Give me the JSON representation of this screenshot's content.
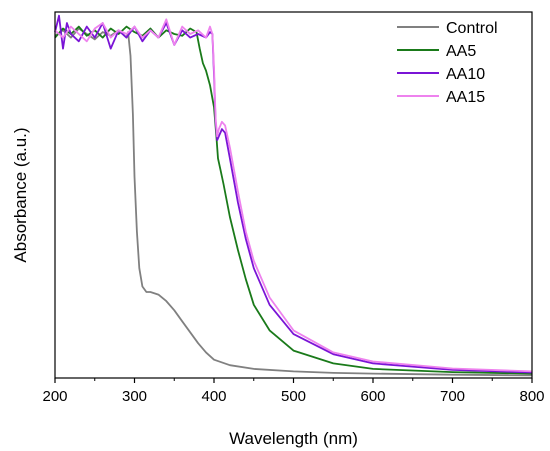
{
  "chart_data": {
    "type": "line",
    "title": "",
    "xlabel": "Wavelength (nm)",
    "ylabel": "Absorbance (a.u.)",
    "xlim": [
      200,
      800
    ],
    "ylim": [
      0,
      1.0
    ],
    "xticks": [
      200,
      300,
      400,
      500,
      600,
      700,
      800
    ],
    "yticks_shown": false,
    "grid": false,
    "legend_position": "top-right",
    "series": [
      {
        "name": "Control",
        "color": "#808080",
        "x": [
          200,
          210,
          220,
          230,
          240,
          250,
          260,
          270,
          280,
          290,
          292,
          295,
          298,
          300,
          303,
          306,
          310,
          315,
          320,
          330,
          340,
          350,
          360,
          370,
          380,
          390,
          400,
          420,
          450,
          500,
          550,
          600,
          700,
          800
        ],
        "y": [
          0.935,
          0.95,
          0.93,
          0.955,
          0.94,
          0.925,
          0.945,
          0.935,
          0.95,
          0.93,
          0.945,
          0.88,
          0.72,
          0.55,
          0.4,
          0.3,
          0.25,
          0.235,
          0.235,
          0.228,
          0.21,
          0.185,
          0.155,
          0.125,
          0.095,
          0.07,
          0.05,
          0.035,
          0.025,
          0.018,
          0.014,
          0.012,
          0.009,
          0.007
        ]
      },
      {
        "name": "AA5",
        "color": "#1a7a1a",
        "x": [
          200,
          210,
          220,
          230,
          240,
          250,
          260,
          270,
          280,
          290,
          300,
          310,
          320,
          330,
          340,
          350,
          360,
          370,
          378,
          382,
          386,
          390,
          395,
          400,
          403,
          405,
          408,
          412,
          420,
          430,
          440,
          450,
          470,
          500,
          550,
          600,
          700,
          800
        ],
        "y": [
          0.93,
          0.955,
          0.94,
          0.96,
          0.935,
          0.95,
          0.93,
          0.955,
          0.94,
          0.96,
          0.945,
          0.935,
          0.955,
          0.93,
          0.95,
          0.94,
          0.935,
          0.955,
          0.945,
          0.9,
          0.86,
          0.84,
          0.8,
          0.74,
          0.66,
          0.6,
          0.57,
          0.53,
          0.44,
          0.35,
          0.27,
          0.2,
          0.13,
          0.075,
          0.04,
          0.025,
          0.016,
          0.012
        ]
      },
      {
        "name": "AA10",
        "color": "#7a14d6",
        "x": [
          200,
          205,
          210,
          215,
          220,
          230,
          240,
          250,
          260,
          270,
          280,
          290,
          300,
          310,
          320,
          330,
          340,
          350,
          360,
          370,
          380,
          390,
          395,
          398,
          400,
          402,
          404,
          406,
          408,
          410,
          414,
          420,
          430,
          440,
          450,
          470,
          500,
          550,
          600,
          700,
          800
        ],
        "y": [
          0.945,
          0.99,
          0.9,
          0.97,
          0.94,
          0.92,
          0.96,
          0.93,
          0.97,
          0.9,
          0.95,
          0.93,
          0.96,
          0.92,
          0.95,
          0.93,
          0.97,
          0.91,
          0.95,
          0.93,
          0.94,
          0.93,
          0.945,
          0.94,
          0.83,
          0.7,
          0.65,
          0.66,
          0.67,
          0.68,
          0.67,
          0.6,
          0.48,
          0.38,
          0.3,
          0.2,
          0.12,
          0.065,
          0.04,
          0.022,
          0.015
        ]
      },
      {
        "name": "AA15",
        "color": "#ee82ee",
        "x": [
          200,
          210,
          220,
          230,
          240,
          250,
          260,
          270,
          280,
          290,
          300,
          310,
          320,
          330,
          340,
          350,
          360,
          370,
          380,
          390,
          395,
          398,
          400,
          402,
          404,
          406,
          408,
          410,
          414,
          420,
          430,
          440,
          450,
          470,
          500,
          550,
          600,
          700,
          800
        ],
        "y": [
          0.95,
          0.93,
          0.96,
          0.94,
          0.92,
          0.955,
          0.97,
          0.93,
          0.95,
          0.94,
          0.96,
          0.93,
          0.95,
          0.93,
          0.98,
          0.91,
          0.96,
          0.94,
          0.95,
          0.93,
          0.96,
          0.94,
          0.85,
          0.71,
          0.66,
          0.68,
          0.69,
          0.7,
          0.69,
          0.63,
          0.51,
          0.4,
          0.32,
          0.22,
          0.13,
          0.07,
          0.045,
          0.026,
          0.018
        ]
      }
    ]
  }
}
